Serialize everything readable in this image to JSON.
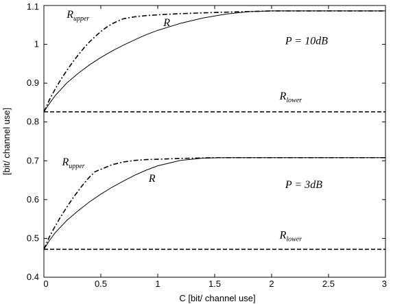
{
  "chart_data": {
    "type": "line",
    "title": "",
    "xlabel": "C [bit/ channel use]",
    "ylabel": "[bit/ channel use]",
    "xlim": [
      0,
      3
    ],
    "ylim": [
      0.4,
      1.1
    ],
    "xticks": [
      0,
      0.5,
      1,
      1.5,
      2,
      2.5,
      3
    ],
    "xtick_labels": [
      "0",
      "0.5",
      "1",
      "1.5",
      "2",
      "2.5",
      "3"
    ],
    "yticks": [
      0.4,
      0.5,
      0.6,
      0.7,
      0.8,
      0.9,
      1.0,
      1.1
    ],
    "ytick_labels": [
      "0.4",
      "0.5",
      "0.6",
      "0.7",
      "0.8",
      "0.9",
      "1",
      "1.1"
    ],
    "grid": false,
    "series": [
      {
        "name": "R_upper",
        "style": "dash-dot",
        "group": "P = 10dB",
        "x": [
          0,
          0.05,
          0.1,
          0.15,
          0.2,
          0.25,
          0.3,
          0.35,
          0.4,
          0.45,
          0.5,
          0.55,
          0.6,
          0.65,
          0.7,
          0.8,
          0.9,
          1.0,
          1.2,
          1.5,
          2.0,
          2.5,
          3.0
        ],
        "y": [
          0.826,
          0.858,
          0.885,
          0.91,
          0.932,
          0.953,
          0.972,
          0.99,
          1.006,
          1.02,
          1.033,
          1.044,
          1.053,
          1.06,
          1.066,
          1.071,
          1.074,
          1.076,
          1.079,
          1.082,
          1.086,
          1.086,
          1.086
        ]
      },
      {
        "name": "R",
        "style": "solid",
        "group": "P = 10dB",
        "x": [
          0,
          0.05,
          0.1,
          0.2,
          0.3,
          0.4,
          0.5,
          0.6,
          0.7,
          0.8,
          0.9,
          1.0,
          1.2,
          1.4,
          1.6,
          1.8,
          2.0,
          2.5,
          3.0
        ],
        "y": [
          0.826,
          0.848,
          0.868,
          0.9,
          0.925,
          0.947,
          0.966,
          0.983,
          0.998,
          1.012,
          1.025,
          1.036,
          1.054,
          1.068,
          1.078,
          1.084,
          1.086,
          1.086,
          1.086
        ]
      },
      {
        "name": "R_lower",
        "style": "dashed",
        "group": "P = 10dB",
        "x": [
          0,
          3
        ],
        "y": [
          0.826,
          0.826
        ]
      },
      {
        "name": "R_upper",
        "style": "dash-dot",
        "group": "P = 3dB",
        "x": [
          0,
          0.05,
          0.1,
          0.15,
          0.2,
          0.25,
          0.3,
          0.35,
          0.4,
          0.45,
          0.5,
          0.55,
          0.6,
          0.7,
          0.8,
          0.9,
          1.0,
          1.2,
          1.5,
          2.0,
          2.5,
          3.0
        ],
        "y": [
          0.472,
          0.505,
          0.532,
          0.557,
          0.58,
          0.602,
          0.622,
          0.641,
          0.658,
          0.672,
          0.678,
          0.684,
          0.69,
          0.697,
          0.701,
          0.703,
          0.704,
          0.706,
          0.708,
          0.708,
          0.708,
          0.708
        ]
      },
      {
        "name": "R",
        "style": "solid",
        "group": "P = 3dB",
        "x": [
          0,
          0.05,
          0.1,
          0.2,
          0.3,
          0.4,
          0.5,
          0.6,
          0.7,
          0.8,
          0.9,
          1.0,
          1.2,
          1.4,
          1.6,
          2.0,
          2.5,
          3.0
        ],
        "y": [
          0.472,
          0.495,
          0.515,
          0.546,
          0.571,
          0.594,
          0.614,
          0.632,
          0.648,
          0.663,
          0.676,
          0.687,
          0.701,
          0.707,
          0.708,
          0.708,
          0.708,
          0.708
        ]
      },
      {
        "name": "R_lower",
        "style": "dashed",
        "group": "P = 3dB",
        "x": [
          0,
          3
        ],
        "y": [
          0.472,
          0.472
        ]
      }
    ],
    "annotations": [
      {
        "base": "R",
        "sub": "upper",
        "x": 0.2,
        "y": 1.068
      },
      {
        "base": "R",
        "sub": "",
        "x": 1.05,
        "y": 1.047
      },
      {
        "base": "P",
        "sub": "",
        "rest": " = 10dB",
        "x": 2.12,
        "y": 1.0
      },
      {
        "base": "R",
        "sub": "lower",
        "x": 2.07,
        "y": 0.858
      },
      {
        "base": "R",
        "sub": "upper",
        "x": 0.16,
        "y": 0.688
      },
      {
        "base": "R",
        "sub": "",
        "x": 0.92,
        "y": 0.646
      },
      {
        "base": "P",
        "sub": "",
        "rest": " = 3dB",
        "x": 2.12,
        "y": 0.63
      },
      {
        "base": "R",
        "sub": "lower",
        "x": 2.07,
        "y": 0.5
      }
    ]
  }
}
